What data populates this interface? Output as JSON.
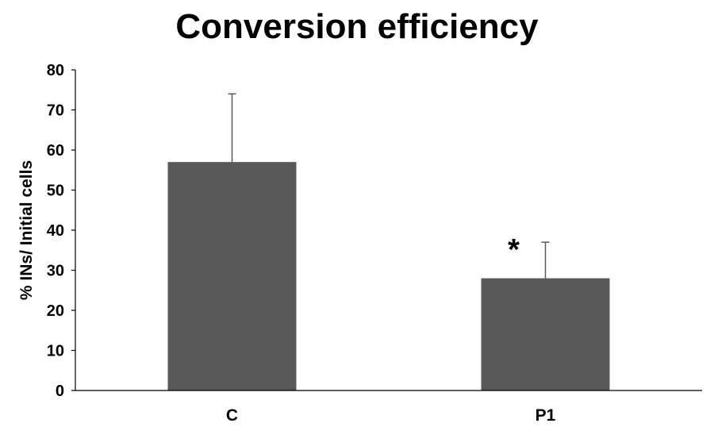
{
  "chart_data": {
    "type": "bar",
    "title": "Conversion efficiency",
    "xlabel": "",
    "ylabel": "% INs/ Initial cells",
    "categories": [
      "C",
      "P1"
    ],
    "values": [
      57,
      28
    ],
    "error_upper": [
      17,
      9
    ],
    "annotations": [
      "",
      "*"
    ],
    "ylim": [
      0,
      80
    ],
    "yticks": [
      0,
      10,
      20,
      30,
      40,
      50,
      60,
      70,
      80
    ],
    "grid": false,
    "legend": "none",
    "colors": {
      "bar": "#595959",
      "error_bar": "#595959",
      "axis": "#000000"
    }
  }
}
